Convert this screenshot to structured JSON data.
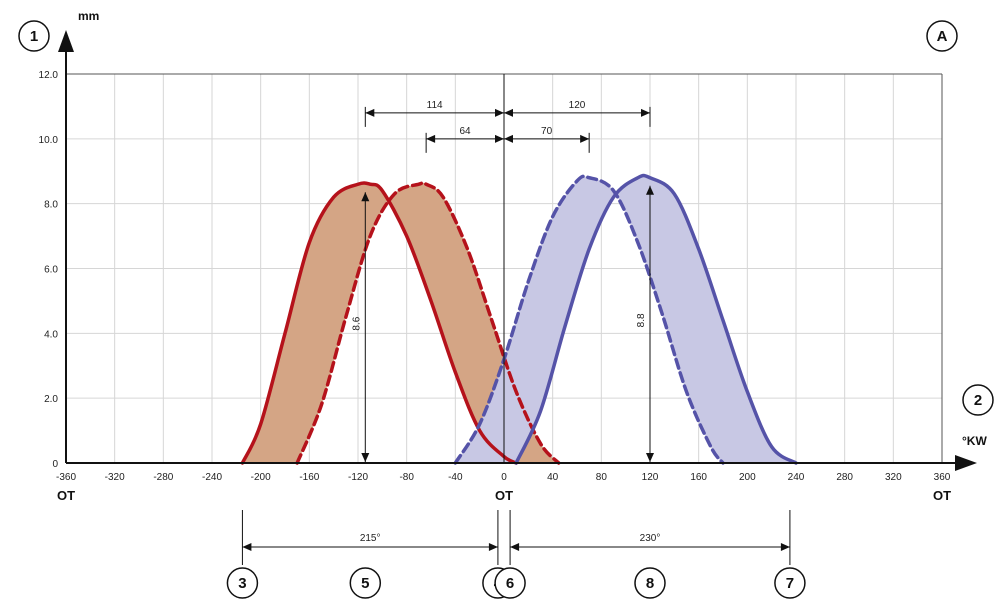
{
  "chart_data": {
    "type": "area",
    "xlabel": "°KW",
    "ylabel": "mm",
    "xlim": [
      -360,
      360
    ],
    "ylim": [
      0,
      12
    ],
    "grid": true,
    "x_ticks": [
      "-360",
      "-320",
      "-280",
      "-240",
      "-200",
      "-160",
      "-120",
      "-80",
      "-40",
      "0",
      "40",
      "80",
      "120",
      "160",
      "200",
      "240",
      "280",
      "320",
      "360"
    ],
    "y_ticks": [
      "0",
      "2.0",
      "4.0",
      "6.0",
      "8.0",
      "10.0",
      "12.0"
    ],
    "ot_labels": [
      "OT",
      "OT",
      "OT"
    ],
    "series": [
      {
        "color": "#b5121b",
        "dash": false,
        "x": [
          -215,
          -200,
          -180,
          -160,
          -140,
          -120,
          -110,
          -100,
          -80,
          -60,
          -40,
          -20,
          0,
          10
        ],
        "y": [
          0,
          1.2,
          4.0,
          6.8,
          8.2,
          8.6,
          8.6,
          8.4,
          7.0,
          5.0,
          2.8,
          1.0,
          0.2,
          0
        ]
      },
      {
        "color": "#b5121b",
        "dash": true,
        "x": [
          -170,
          -150,
          -130,
          -110,
          -90,
          -70,
          -64,
          -50,
          -30,
          -10,
          10,
          30,
          45
        ],
        "y": [
          0,
          1.8,
          4.5,
          7.0,
          8.3,
          8.6,
          8.6,
          8.2,
          6.6,
          4.4,
          2.2,
          0.6,
          0
        ]
      },
      {
        "color": "#5553a8",
        "dash": true,
        "x": [
          -40,
          -20,
          0,
          20,
          40,
          60,
          70,
          90,
          110,
          130,
          150,
          170,
          180
        ],
        "y": [
          0,
          1.2,
          3.2,
          5.6,
          7.6,
          8.7,
          8.8,
          8.4,
          6.8,
          4.6,
          2.2,
          0.5,
          0
        ]
      },
      {
        "color": "#5553a8",
        "dash": false,
        "x": [
          10,
          30,
          50,
          70,
          90,
          110,
          120,
          140,
          160,
          180,
          200,
          220,
          240
        ],
        "y": [
          0,
          1.6,
          4.2,
          6.6,
          8.2,
          8.8,
          8.8,
          8.3,
          6.6,
          4.4,
          2.2,
          0.5,
          0
        ]
      }
    ],
    "fills": [
      {
        "from_series": 0,
        "to_series": 1,
        "color": "#d4a585"
      },
      {
        "from_series": 2,
        "to_series": 3,
        "color": "#c8c8e4"
      }
    ],
    "annotations": {
      "top_dims": [
        {
          "value": "114",
          "from": -114,
          "to": 0,
          "y": 10.8
        },
        {
          "value": "120",
          "from": 0,
          "to": 120,
          "y": 10.8
        },
        {
          "value": "64",
          "from": -64,
          "to": 0,
          "y": 10.0
        },
        {
          "value": "70",
          "from": 0,
          "to": 70,
          "y": 10.0
        }
      ],
      "heights": [
        {
          "value": "8.6",
          "x": -114,
          "top": 8.6
        },
        {
          "value": "8.8",
          "x": 120,
          "top": 8.8
        }
      ],
      "duration_dims": [
        {
          "value": "215°",
          "from": -215,
          "to": -5
        },
        {
          "value": "230°",
          "from": 5,
          "to": 235
        }
      ]
    },
    "badges": [
      {
        "label": "1",
        "role": "y-axis"
      },
      {
        "label": "2",
        "role": "x-axis"
      },
      {
        "label": "A",
        "role": "corner"
      },
      {
        "label": "3",
        "x": -215
      },
      {
        "label": "5",
        "x": -114
      },
      {
        "label": "4",
        "x": -5
      },
      {
        "label": "6",
        "x": 5
      },
      {
        "label": "8",
        "x": 120
      },
      {
        "label": "7",
        "x": 235
      }
    ]
  }
}
